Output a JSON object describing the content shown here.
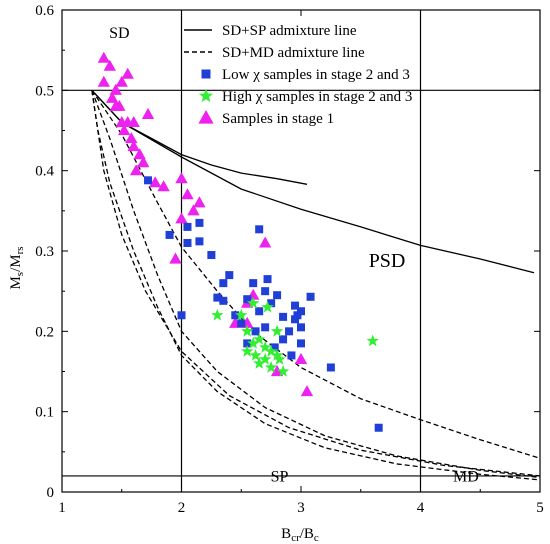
{
  "chart_data": {
    "type": "scatter",
    "xlabel": {
      "main": "B",
      "sub1": "cr",
      "sep": "/",
      "main2": "B",
      "sub2": "c"
    },
    "ylabel": {
      "main": "M",
      "sub1": "s",
      "sep": "/",
      "main2": "M",
      "sub2": "rs"
    },
    "xlim": [
      1,
      5
    ],
    "ylim": [
      0,
      0.6
    ],
    "xticks": [
      1,
      2,
      3,
      4,
      5
    ],
    "yticks": [
      0,
      0.1,
      0.2,
      0.3,
      0.4,
      0.5,
      0.6
    ],
    "xtick_labels": [
      "1",
      "2",
      "3",
      "4",
      "5"
    ],
    "ytick_labels": [
      "0",
      "0.1",
      "0.2",
      "0.3",
      "0.4",
      "0.5",
      "0.6"
    ],
    "grid": false,
    "legend_position": "top-right",
    "colors": {
      "low_chi": "#1f3fd6",
      "high_chi": "#33ee33",
      "stage1": "#ee22ee",
      "lines": "#000000"
    },
    "region_labels": [
      {
        "text": "SD",
        "x": 1.48,
        "y": 0.565
      },
      {
        "text": "PSD",
        "x": 3.72,
        "y": 0.28
      },
      {
        "text": "SP",
        "x": 2.82,
        "y": 0.013
      },
      {
        "text": "MD",
        "x": 4.38,
        "y": 0.013
      }
    ],
    "boundary_lines": {
      "vertical_x": [
        2,
        4
      ],
      "horizontal_y": [
        0.5,
        0.02
      ]
    },
    "legend": [
      {
        "label": "SD+SP admixture line",
        "symbol": "solid-line"
      },
      {
        "label": "SD+MD admixture line",
        "symbol": "dashed-line"
      },
      {
        "label": "Low χ samples in stage 2 and 3",
        "symbol": "square"
      },
      {
        "label": "High χ samples in stage 2 and 3",
        "symbol": "star"
      },
      {
        "label": "Samples in stage 1",
        "symbol": "triangle"
      }
    ],
    "curves": [
      {
        "style": "solid",
        "points": [
          [
            1.25,
            0.5
          ],
          [
            1.5,
            0.46
          ],
          [
            1.75,
            0.44
          ],
          [
            2,
            0.42
          ],
          [
            2.25,
            0.407
          ],
          [
            2.5,
            0.397
          ],
          [
            2.8,
            0.39
          ],
          [
            3.05,
            0.383
          ]
        ]
      },
      {
        "style": "solid",
        "points": [
          [
            1.25,
            0.5
          ],
          [
            1.5,
            0.46
          ],
          [
            2,
            0.417
          ],
          [
            2.5,
            0.377
          ],
          [
            3,
            0.352
          ],
          [
            3.5,
            0.33
          ],
          [
            4,
            0.307
          ],
          [
            4.5,
            0.29
          ],
          [
            4.95,
            0.273
          ]
        ]
      },
      {
        "style": "dashed",
        "points": [
          [
            1.25,
            0.5
          ],
          [
            1.5,
            0.445
          ],
          [
            1.8,
            0.36
          ],
          [
            2,
            0.305
          ],
          [
            2.3,
            0.25
          ],
          [
            2.6,
            0.2
          ],
          [
            3,
            0.155
          ],
          [
            3.5,
            0.116
          ],
          [
            4,
            0.09
          ],
          [
            4.5,
            0.065
          ],
          [
            5,
            0.042
          ]
        ]
      },
      {
        "style": "dashed",
        "points": [
          [
            1.25,
            0.5
          ],
          [
            1.4,
            0.44
          ],
          [
            1.6,
            0.35
          ],
          [
            1.8,
            0.27
          ],
          [
            2,
            0.2
          ],
          [
            2.3,
            0.15
          ],
          [
            2.7,
            0.105
          ],
          [
            3.2,
            0.07
          ],
          [
            3.8,
            0.045
          ],
          [
            4.5,
            0.027
          ],
          [
            5,
            0.018
          ]
        ]
      },
      {
        "style": "dashed",
        "points": [
          [
            1.25,
            0.5
          ],
          [
            1.3,
            0.45
          ],
          [
            1.4,
            0.385
          ],
          [
            1.6,
            0.3
          ],
          [
            1.8,
            0.23
          ],
          [
            2,
            0.17
          ],
          [
            2.3,
            0.125
          ],
          [
            2.7,
            0.085
          ],
          [
            3.2,
            0.055
          ],
          [
            3.8,
            0.035
          ],
          [
            4.5,
            0.022
          ],
          [
            5,
            0.015
          ]
        ]
      },
      {
        "style": "dashed",
        "points": [
          [
            1.25,
            0.5
          ],
          [
            1.35,
            0.4
          ],
          [
            1.5,
            0.32
          ],
          [
            1.7,
            0.25
          ],
          [
            2,
            0.175
          ],
          [
            2.4,
            0.12
          ],
          [
            2.9,
            0.08
          ],
          [
            3.5,
            0.052
          ],
          [
            4.2,
            0.033
          ],
          [
            5,
            0.02
          ]
        ]
      }
    ],
    "series": [
      {
        "name": "Low χ samples in stage 2 and 3",
        "marker": "square",
        "points": [
          [
            1.72,
            0.388
          ],
          [
            1.9,
            0.32
          ],
          [
            2.0,
            0.22
          ],
          [
            2.05,
            0.31
          ],
          [
            2.05,
            0.33
          ],
          [
            2.15,
            0.312
          ],
          [
            2.15,
            0.335
          ],
          [
            2.25,
            0.295
          ],
          [
            2.3,
            0.242
          ],
          [
            2.35,
            0.238
          ],
          [
            2.35,
            0.26
          ],
          [
            2.4,
            0.27
          ],
          [
            2.45,
            0.22
          ],
          [
            2.5,
            0.21
          ],
          [
            2.55,
            0.24
          ],
          [
            2.55,
            0.185
          ],
          [
            2.6,
            0.26
          ],
          [
            2.62,
            0.2
          ],
          [
            2.65,
            0.327
          ],
          [
            2.65,
            0.225
          ],
          [
            2.7,
            0.25
          ],
          [
            2.7,
            0.205
          ],
          [
            2.72,
            0.265
          ],
          [
            2.75,
            0.235
          ],
          [
            2.78,
            0.18
          ],
          [
            2.8,
            0.245
          ],
          [
            2.85,
            0.218
          ],
          [
            2.85,
            0.19
          ],
          [
            2.9,
            0.2
          ],
          [
            2.92,
            0.17
          ],
          [
            2.95,
            0.232
          ],
          [
            2.95,
            0.215
          ],
          [
            2.97,
            0.22
          ],
          [
            3.0,
            0.225
          ],
          [
            3.0,
            0.205
          ],
          [
            3.0,
            0.185
          ],
          [
            3.08,
            0.243
          ],
          [
            3.25,
            0.155
          ],
          [
            3.65,
            0.08
          ]
        ]
      },
      {
        "name": "High χ samples in stage 2 and 3",
        "marker": "star",
        "points": [
          [
            2.3,
            0.22
          ],
          [
            2.5,
            0.22
          ],
          [
            2.55,
            0.2
          ],
          [
            2.55,
            0.175
          ],
          [
            2.6,
            0.185
          ],
          [
            2.62,
            0.17
          ],
          [
            2.65,
            0.19
          ],
          [
            2.65,
            0.16
          ],
          [
            2.7,
            0.18
          ],
          [
            2.7,
            0.165
          ],
          [
            2.72,
            0.23
          ],
          [
            2.75,
            0.175
          ],
          [
            2.75,
            0.155
          ],
          [
            2.8,
            0.2
          ],
          [
            2.8,
            0.17
          ],
          [
            2.82,
            0.165
          ],
          [
            2.85,
            0.15
          ],
          [
            2.6,
            0.235
          ],
          [
            3.6,
            0.188
          ]
        ]
      },
      {
        "name": "Samples in stage 1",
        "marker": "triangle",
        "points": [
          [
            1.35,
            0.54
          ],
          [
            1.4,
            0.53
          ],
          [
            1.35,
            0.51
          ],
          [
            1.42,
            0.49
          ],
          [
            1.45,
            0.5
          ],
          [
            1.48,
            0.48
          ],
          [
            1.5,
            0.51
          ],
          [
            1.55,
            0.52
          ],
          [
            1.45,
            0.48
          ],
          [
            1.5,
            0.46
          ],
          [
            1.52,
            0.45
          ],
          [
            1.55,
            0.46
          ],
          [
            1.58,
            0.44
          ],
          [
            1.6,
            0.46
          ],
          [
            1.6,
            0.43
          ],
          [
            1.65,
            0.42
          ],
          [
            1.62,
            0.4
          ],
          [
            1.68,
            0.41
          ],
          [
            1.72,
            0.47
          ],
          [
            1.78,
            0.385
          ],
          [
            1.85,
            0.38
          ],
          [
            1.95,
            0.29
          ],
          [
            2.0,
            0.39
          ],
          [
            2.0,
            0.34
          ],
          [
            2.05,
            0.37
          ],
          [
            2.1,
            0.35
          ],
          [
            2.15,
            0.36
          ],
          [
            2.45,
            0.21
          ],
          [
            2.55,
            0.235
          ],
          [
            2.6,
            0.245
          ],
          [
            2.7,
            0.31
          ],
          [
            2.8,
            0.15
          ],
          [
            3.0,
            0.165
          ],
          [
            3.05,
            0.125
          ],
          [
            2.55,
            0.21
          ]
        ]
      }
    ]
  }
}
